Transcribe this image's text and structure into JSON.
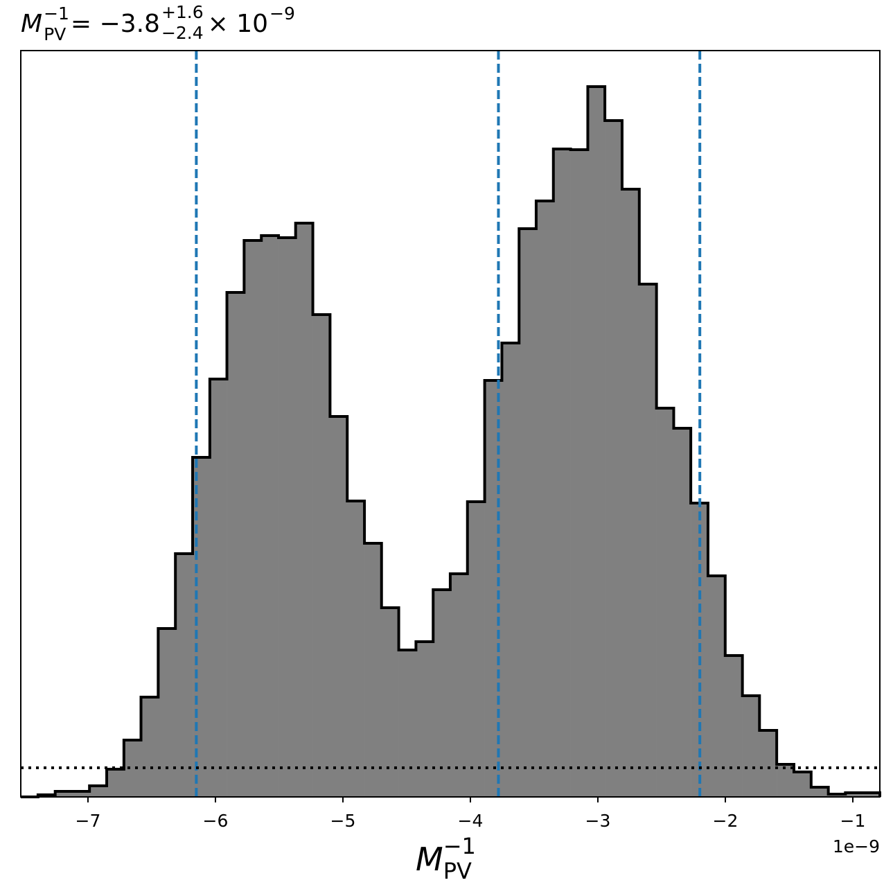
{
  "chart_data": {
    "type": "histogram",
    "title": {
      "symbol": "M",
      "symbol_sub": "PV",
      "symbol_sup": "−1",
      "value": " = −3.8",
      "upper": "+1.6",
      "lower": "−2.4",
      "times": "× 10",
      "exponent": "−9"
    },
    "xlabel": {
      "symbol": "M",
      "sub": "PV",
      "sup": "−1"
    },
    "offset_label": "1e−9",
    "bins": [
      -7.527,
      -7.392,
      -7.257,
      -7.123,
      -6.988,
      -6.853,
      -6.718,
      -6.584,
      -6.449,
      -6.314,
      -6.179,
      -6.044,
      -5.91,
      -5.775,
      -5.64,
      -5.505,
      -5.371,
      -5.236,
      -5.101,
      -4.966,
      -4.831,
      -4.697,
      -4.562,
      -4.427,
      -4.292,
      -4.158,
      -4.023,
      -3.888,
      -3.753,
      -3.618,
      -3.484,
      -3.349,
      -3.214,
      -3.079,
      -2.945,
      -2.81,
      -2.675,
      -2.54,
      -2.405,
      -2.271,
      -2.136,
      -2.001,
      -1.866,
      -1.732,
      -1.597,
      -1.462,
      -1.327,
      -1.192,
      -1.058,
      -0.923,
      -0.788
    ],
    "counts": [
      0,
      3,
      8,
      8,
      16,
      40,
      82,
      144,
      243,
      351,
      490,
      603,
      728,
      803,
      810,
      807,
      828,
      696,
      549,
      427,
      366,
      273,
      212,
      224,
      299,
      322,
      426,
      601,
      655,
      820,
      860,
      935,
      934,
      1025,
      976,
      877,
      740,
      561,
      532,
      424,
      319,
      204,
      146,
      96,
      47,
      36,
      14,
      4,
      6,
      6
    ],
    "color": "#808080",
    "edgecolor": "#000000",
    "xlim": [
      -7.527,
      -0.788
    ],
    "ylim": [
      0,
      1077
    ],
    "xticks": [
      {
        "value": -7,
        "label": "−7"
      },
      {
        "value": -6,
        "label": "−6"
      },
      {
        "value": -5,
        "label": "−5"
      },
      {
        "value": -4,
        "label": "−4"
      },
      {
        "value": -3,
        "label": "−3"
      },
      {
        "value": -2,
        "label": "−2"
      },
      {
        "value": -1,
        "label": "−1"
      }
    ],
    "vlines": [
      -6.15,
      -3.78,
      -2.2
    ],
    "vline_color": "#1f77b4",
    "hline": 42
  }
}
